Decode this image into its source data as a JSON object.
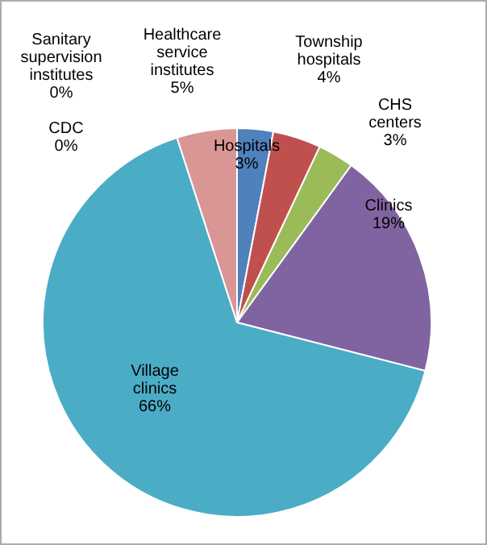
{
  "chart_data": {
    "type": "pie",
    "categories": [
      "Hospitals",
      "Township hospitals",
      "CHS centers",
      "Clinics",
      "Village clinics",
      "CDC",
      "Sanitary supervision institutes",
      "Healthcare service institutes"
    ],
    "values": [
      3,
      4,
      3,
      19,
      66,
      0,
      0,
      5
    ],
    "colors": [
      "#4f81bd",
      "#c0504d",
      "#9bbb59",
      "#8064a2",
      "#4bacc6",
      "#f79646",
      "#2c4d75",
      "#d99694"
    ],
    "value_labels": [
      "3%",
      "4%",
      "3%",
      "19%",
      "66%",
      "0%",
      "0%",
      "5%"
    ],
    "legend": false
  }
}
